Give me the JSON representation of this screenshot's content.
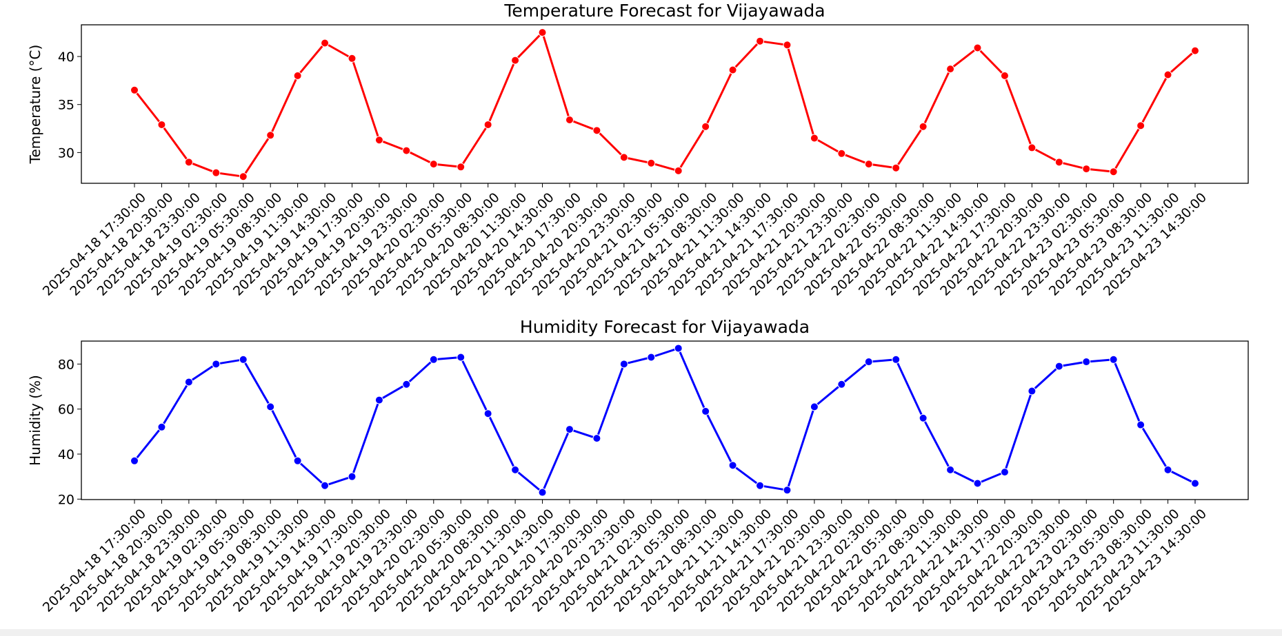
{
  "chart_data": [
    {
      "type": "line",
      "title": "Temperature Forecast for Vijayawada",
      "xlabel": "",
      "ylabel": "Temperature (°C)",
      "ylim": [
        26.8,
        43.3
      ],
      "yticks": [
        30,
        35,
        40
      ],
      "x": [
        "2025-04-18 17:30:00",
        "2025-04-18 20:30:00",
        "2025-04-18 23:30:00",
        "2025-04-19 02:30:00",
        "2025-04-19 05:30:00",
        "2025-04-19 08:30:00",
        "2025-04-19 11:30:00",
        "2025-04-19 14:30:00",
        "2025-04-19 17:30:00",
        "2025-04-19 20:30:00",
        "2025-04-19 23:30:00",
        "2025-04-20 02:30:00",
        "2025-04-20 05:30:00",
        "2025-04-20 08:30:00",
        "2025-04-20 11:30:00",
        "2025-04-20 14:30:00",
        "2025-04-20 17:30:00",
        "2025-04-20 20:30:00",
        "2025-04-20 23:30:00",
        "2025-04-21 02:30:00",
        "2025-04-21 05:30:00",
        "2025-04-21 08:30:00",
        "2025-04-21 11:30:00",
        "2025-04-21 14:30:00",
        "2025-04-21 17:30:00",
        "2025-04-21 20:30:00",
        "2025-04-21 23:30:00",
        "2025-04-22 02:30:00",
        "2025-04-22 05:30:00",
        "2025-04-22 08:30:00",
        "2025-04-22 11:30:00",
        "2025-04-22 14:30:00",
        "2025-04-22 17:30:00",
        "2025-04-22 20:30:00",
        "2025-04-22 23:30:00",
        "2025-04-23 02:30:00",
        "2025-04-23 05:30:00",
        "2025-04-23 08:30:00",
        "2025-04-23 11:30:00",
        "2025-04-23 14:30:00"
      ],
      "series": [
        {
          "values": [
            36.5,
            32.9,
            29.0,
            27.9,
            27.5,
            31.8,
            38.0,
            41.4,
            39.8,
            31.3,
            30.2,
            28.8,
            28.5,
            32.9,
            39.6,
            42.5,
            33.4,
            32.3,
            29.5,
            28.9,
            28.1,
            32.7,
            38.6,
            41.6,
            41.2,
            31.5,
            29.9,
            28.8,
            28.4,
            32.7,
            38.7,
            40.9,
            38.0,
            30.5,
            29.0,
            28.3,
            28.0,
            32.8,
            38.1,
            40.6
          ],
          "color": "#ff0000"
        }
      ],
      "grid": false,
      "marker": "circle"
    },
    {
      "type": "line",
      "title": "Humidity Forecast for Vijayawada",
      "xlabel": "",
      "ylabel": "Humidity (%)",
      "ylim": [
        19.8,
        90.2
      ],
      "yticks": [
        20,
        40,
        60,
        80
      ],
      "x": [
        "2025-04-18 17:30:00",
        "2025-04-18 20:30:00",
        "2025-04-18 23:30:00",
        "2025-04-19 02:30:00",
        "2025-04-19 05:30:00",
        "2025-04-19 08:30:00",
        "2025-04-19 11:30:00",
        "2025-04-19 14:30:00",
        "2025-04-19 17:30:00",
        "2025-04-19 20:30:00",
        "2025-04-19 23:30:00",
        "2025-04-20 02:30:00",
        "2025-04-20 05:30:00",
        "2025-04-20 08:30:00",
        "2025-04-20 11:30:00",
        "2025-04-20 14:30:00",
        "2025-04-20 17:30:00",
        "2025-04-20 20:30:00",
        "2025-04-20 23:30:00",
        "2025-04-21 02:30:00",
        "2025-04-21 05:30:00",
        "2025-04-21 08:30:00",
        "2025-04-21 11:30:00",
        "2025-04-21 14:30:00",
        "2025-04-21 17:30:00",
        "2025-04-21 20:30:00",
        "2025-04-21 23:30:00",
        "2025-04-22 02:30:00",
        "2025-04-22 05:30:00",
        "2025-04-22 08:30:00",
        "2025-04-22 11:30:00",
        "2025-04-22 14:30:00",
        "2025-04-22 17:30:00",
        "2025-04-22 20:30:00",
        "2025-04-22 23:30:00",
        "2025-04-23 02:30:00",
        "2025-04-23 05:30:00",
        "2025-04-23 08:30:00",
        "2025-04-23 11:30:00",
        "2025-04-23 14:30:00"
      ],
      "series": [
        {
          "values": [
            37,
            52,
            72,
            80,
            82,
            61,
            37,
            26,
            30,
            64,
            71,
            82,
            83,
            58,
            33,
            23,
            51,
            47,
            80,
            83,
            87,
            59,
            35,
            26,
            24,
            61,
            71,
            81,
            82,
            56,
            33,
            27,
            32,
            68,
            79,
            81,
            82,
            53,
            33,
            27
          ],
          "color": "#0000ff"
        }
      ],
      "grid": false,
      "marker": "circle"
    }
  ]
}
